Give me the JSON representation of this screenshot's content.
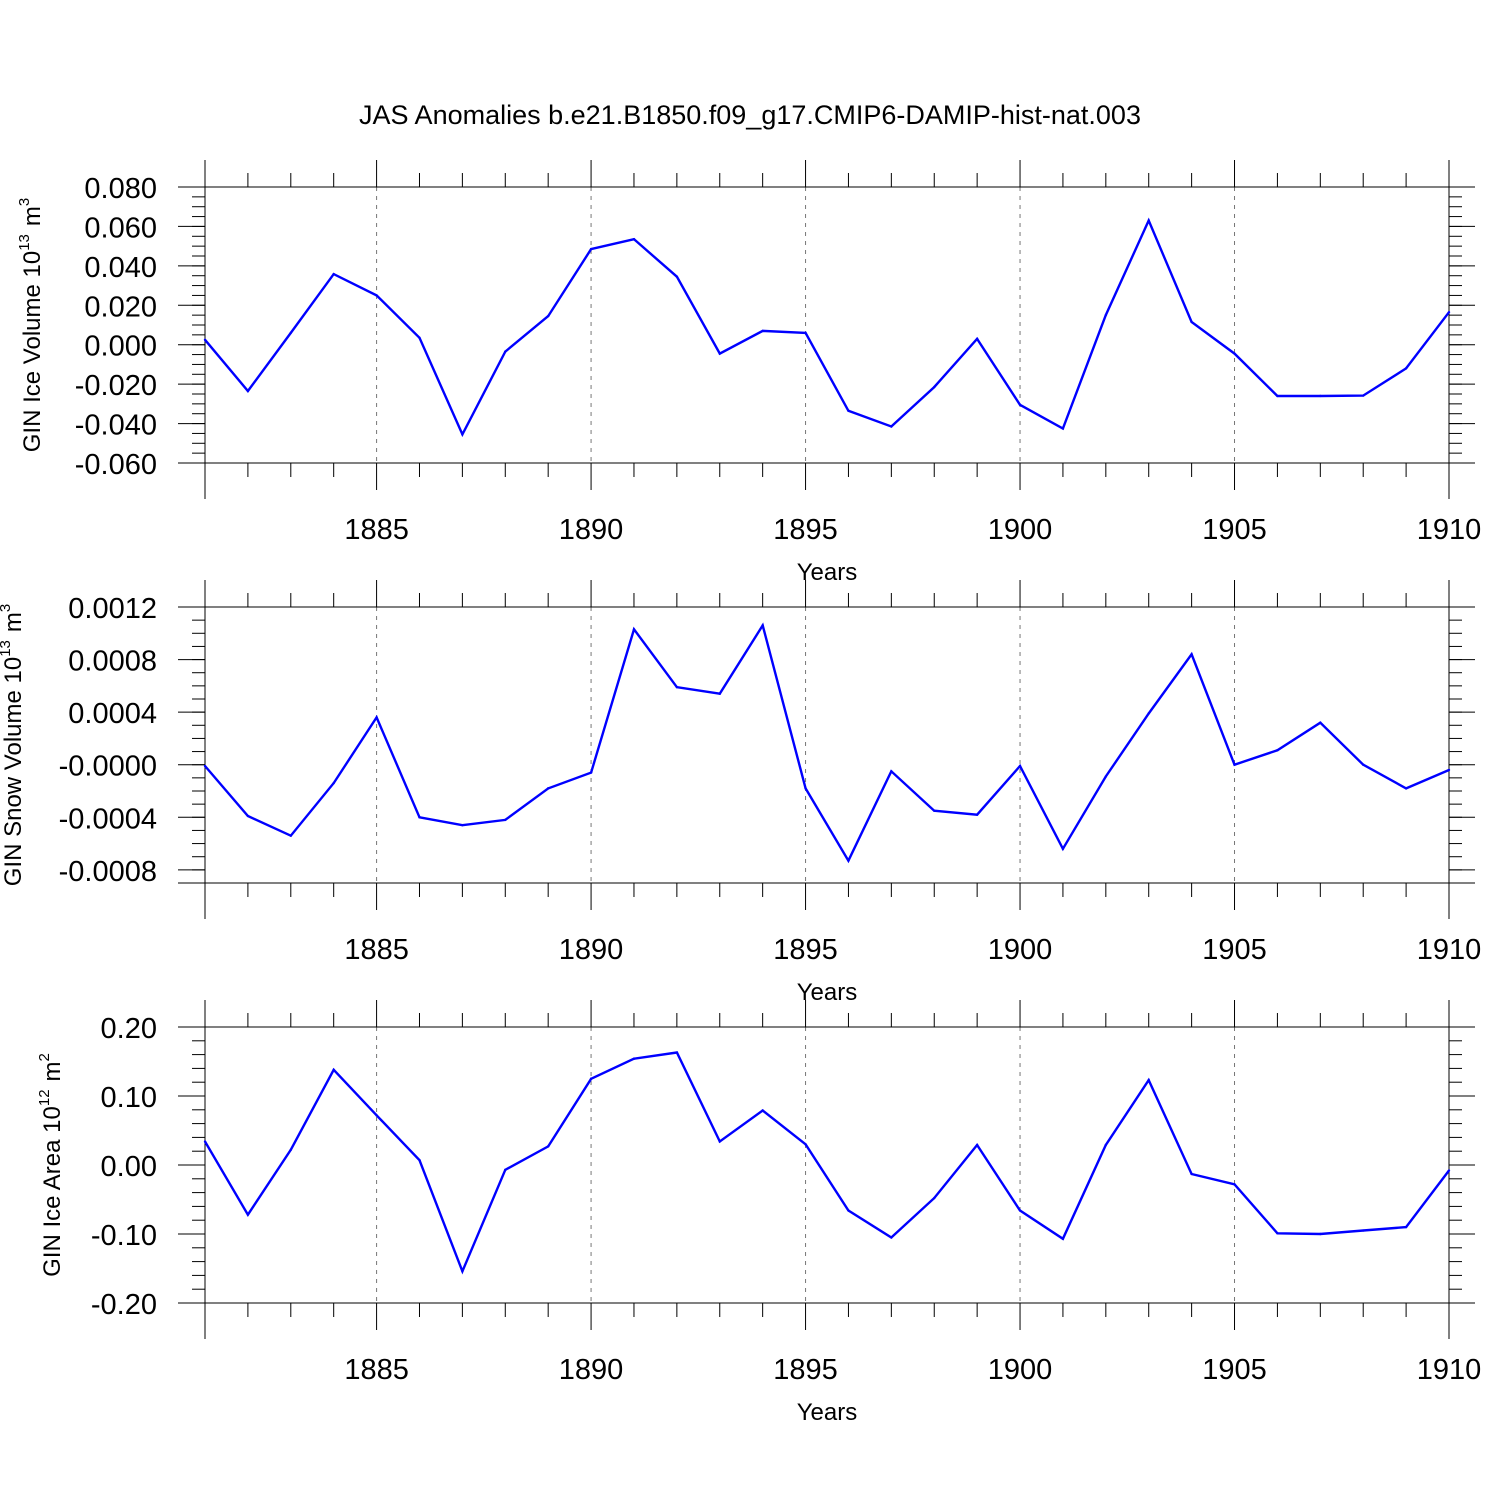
{
  "title": "JAS Anomalies b.e21.B1850.f09_g17.CMIP6-DAMIP-hist-nat.003",
  "line_color": "#0000ff",
  "chart_data": [
    {
      "type": "line",
      "ylabel": "GIN Ice Volume 10",
      "ylabel_sup": "13",
      "ylabel_unit": "m",
      "ylabel_unit_sup": "3",
      "xlabel": "Years",
      "xlim": [
        1881,
        1910
      ],
      "ylim": [
        -0.06,
        0.08
      ],
      "yticks": [
        0.08,
        0.06,
        0.04,
        0.02,
        0.0,
        -0.02,
        -0.04,
        -0.06
      ],
      "ytick_labels": [
        "0.080",
        "0.060",
        "0.040",
        "0.020",
        "0.000",
        "-0.020",
        "-0.040",
        "-0.060"
      ],
      "xticks": [
        1885,
        1890,
        1895,
        1900,
        1905,
        1910
      ],
      "xtick_labels": [
        "1885",
        "1890",
        "1895",
        "1900",
        "1905",
        "1910"
      ],
      "x": [
        1881,
        1882,
        1883,
        1884,
        1885,
        1886,
        1887,
        1888,
        1889,
        1890,
        1891,
        1892,
        1893,
        1894,
        1895,
        1896,
        1897,
        1898,
        1899,
        1900,
        1901,
        1902,
        1903,
        1904,
        1905,
        1906,
        1907,
        1908,
        1909,
        1910
      ],
      "values": [
        0.0025,
        -0.0235,
        0.006,
        0.0358,
        0.025,
        0.0035,
        -0.0455,
        -0.0035,
        0.0145,
        0.0485,
        0.0535,
        0.0345,
        -0.0045,
        0.007,
        0.006,
        -0.0335,
        -0.0415,
        -0.0215,
        0.003,
        -0.0305,
        -0.0425,
        0.015,
        0.063,
        0.0115,
        -0.0045,
        -0.026,
        -0.026,
        -0.0258,
        -0.012,
        0.0165
      ]
    },
    {
      "type": "line",
      "ylabel": "GIN Snow Volume 10",
      "ylabel_sup": "13",
      "ylabel_unit": "m",
      "ylabel_unit_sup": "3",
      "xlabel": "Years",
      "xlim": [
        1881,
        1910
      ],
      "ylim": [
        -0.0009,
        0.0012
      ],
      "yticks": [
        0.0012,
        0.0008,
        0.0004,
        0.0,
        -0.0004,
        -0.0008
      ],
      "ytick_labels": [
        "0.0012",
        "0.0008",
        "0.0004",
        "-0.0000",
        "-0.0004",
        "-0.0008"
      ],
      "xticks": [
        1885,
        1890,
        1895,
        1900,
        1905,
        1910
      ],
      "xtick_labels": [
        "1885",
        "1890",
        "1895",
        "1900",
        "1905",
        "1910"
      ],
      "x": [
        1881,
        1882,
        1883,
        1884,
        1885,
        1886,
        1887,
        1888,
        1889,
        1890,
        1891,
        1892,
        1893,
        1894,
        1895,
        1896,
        1897,
        1898,
        1899,
        1900,
        1901,
        1902,
        1903,
        1904,
        1905,
        1906,
        1907,
        1908,
        1909,
        1910
      ],
      "values": [
        -1e-05,
        -0.00039,
        -0.00054,
        -0.00014,
        0.00036,
        -0.0004,
        -0.00046,
        -0.00042,
        -0.00018,
        -6e-05,
        0.00103,
        0.00059,
        0.00054,
        0.00106,
        -0.00018,
        -0.00073,
        -5e-05,
        -0.00035,
        -0.00038,
        -1e-05,
        -0.00064,
        -9e-05,
        0.00039,
        0.00084,
        0.0,
        0.00011,
        0.00032,
        0.0,
        -0.00018,
        -4e-05
      ]
    },
    {
      "type": "line",
      "ylabel": "GIN Ice Area 10",
      "ylabel_sup": "12",
      "ylabel_unit": "m",
      "ylabel_unit_sup": "2",
      "xlabel": "Years",
      "xlim": [
        1881,
        1910
      ],
      "ylim": [
        -0.2,
        0.2
      ],
      "yticks": [
        0.2,
        0.1,
        0.0,
        -0.1,
        -0.2
      ],
      "ytick_labels": [
        "0.20",
        "0.10",
        "0.00",
        "-0.10",
        "-0.20"
      ],
      "xticks": [
        1885,
        1890,
        1895,
        1900,
        1905,
        1910
      ],
      "xtick_labels": [
        "1885",
        "1890",
        "1895",
        "1900",
        "1905",
        "1910"
      ],
      "x": [
        1881,
        1882,
        1883,
        1884,
        1885,
        1886,
        1887,
        1888,
        1889,
        1890,
        1891,
        1892,
        1893,
        1894,
        1895,
        1896,
        1897,
        1898,
        1899,
        1900,
        1901,
        1902,
        1903,
        1904,
        1905,
        1906,
        1907,
        1908,
        1909,
        1910
      ],
      "values": [
        0.034,
        -0.072,
        0.022,
        0.138,
        0.072,
        0.007,
        -0.154,
        -0.007,
        0.027,
        0.125,
        0.154,
        0.163,
        0.034,
        0.079,
        0.03,
        -0.066,
        -0.105,
        -0.048,
        0.029,
        -0.066,
        -0.107,
        0.029,
        0.123,
        -0.013,
        -0.028,
        -0.099,
        -0.1,
        -0.095,
        -0.09,
        -0.008
      ]
    }
  ]
}
